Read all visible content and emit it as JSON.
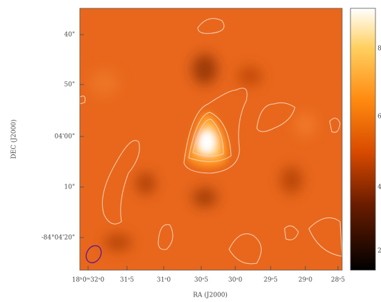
{
  "plot": {
    "x_axis": {
      "label": "RA (J2000)",
      "ticks": [
        "18ʰ0ᵐ32ˢ0",
        "31ˢ5",
        "31ˢ0",
        "30ˢ5",
        "30ˢ0",
        "29ˢ5",
        "29ˢ0",
        "28ˢ5"
      ]
    },
    "y_axis": {
      "label": "DEC (J2000)",
      "ticks": [
        "40\"",
        "50\"",
        "04'00\"",
        "10\"",
        "-84°04'20\""
      ]
    },
    "colorbar": {
      "ticks": [
        "8",
        "6",
        "4",
        "2"
      ]
    }
  }
}
